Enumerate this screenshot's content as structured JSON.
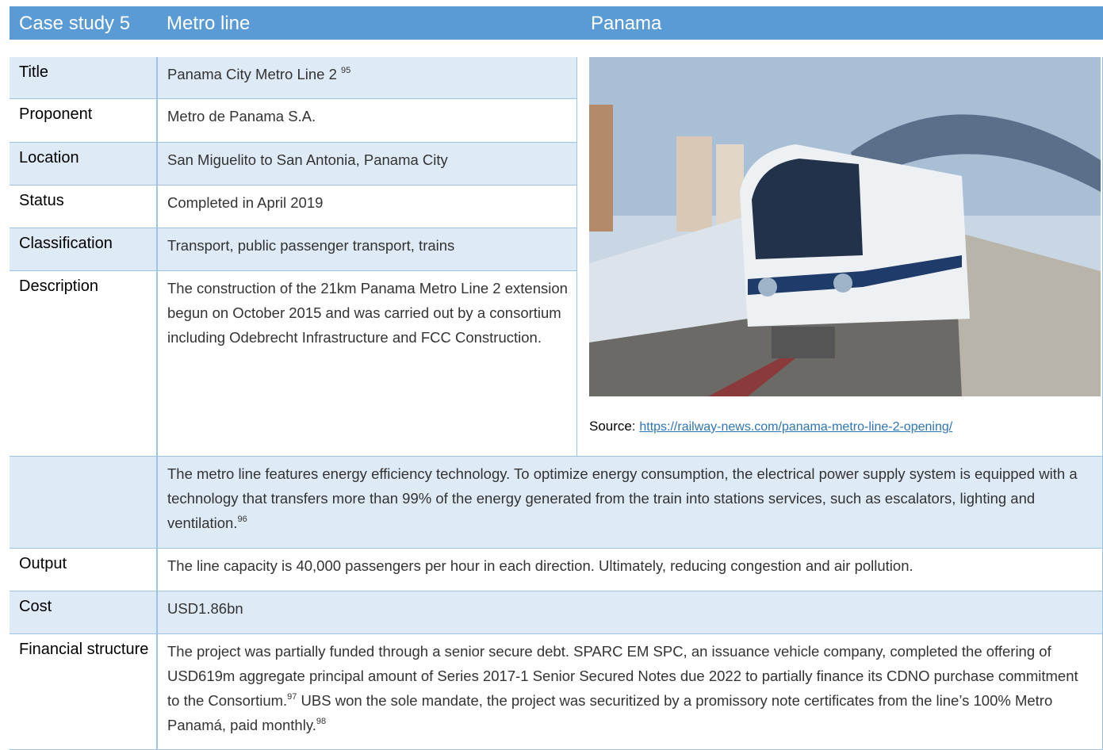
{
  "header": {
    "case": "Case study 5",
    "type": "Metro line",
    "country": "Panama"
  },
  "rows": [
    {
      "label": "Title",
      "text": "Panama City Metro Line 2",
      "note": "95"
    },
    {
      "label": "Proponent",
      "text": "Metro de Panama S.A."
    },
    {
      "label": "Location",
      "text": "San Miguelito to San Antonia, Panama City"
    },
    {
      "label": "Status",
      "text": "Completed in April 2019"
    },
    {
      "label": "Classification",
      "text": "Transport, public passenger transport, trains"
    },
    {
      "label": "Description",
      "text": "The construction of the 21km Panama Metro Line 2 extension begun on October 2015 and was carried out by a consortium including Odebrecht Infrastructure and FCC Construction."
    },
    {
      "text": "The metro line features energy efficiency technology. To optimize energy consumption, the electrical power supply system is equipped with a technology that transfers more than 99% of the energy generated from the train into stations services, such as escalators, lighting and ventilation.",
      "note": "96"
    },
    {
      "label": "Output",
      "text": "The line capacity is 40,000 passengers per hour in each direction. Ultimately, reducing congestion and air pollution."
    },
    {
      "label": "Cost",
      "text": "USD1.86bn"
    },
    {
      "label": "Financial structure",
      "text": "The project was partially funded through a senior secure debt. SPARC EM SPC, an issuance vehicle company, completed the offering of USD619m aggregate principal amount of Series 2017-1 Senior Secured Notes due 2022 to partially finance its CDNO purchase commitment to the Consortium.",
      "note": "97",
      "text2": "UBS won the sole mandate, the project was securitized by a promissory note certificates from the line’s 100% Metro Panamá, paid monthly.",
      "note2": "98"
    }
  ],
  "source": {
    "label": "Source",
    "separator": ":",
    "url": "https://railway-news.com/panama-metro-line-2-opening/"
  }
}
